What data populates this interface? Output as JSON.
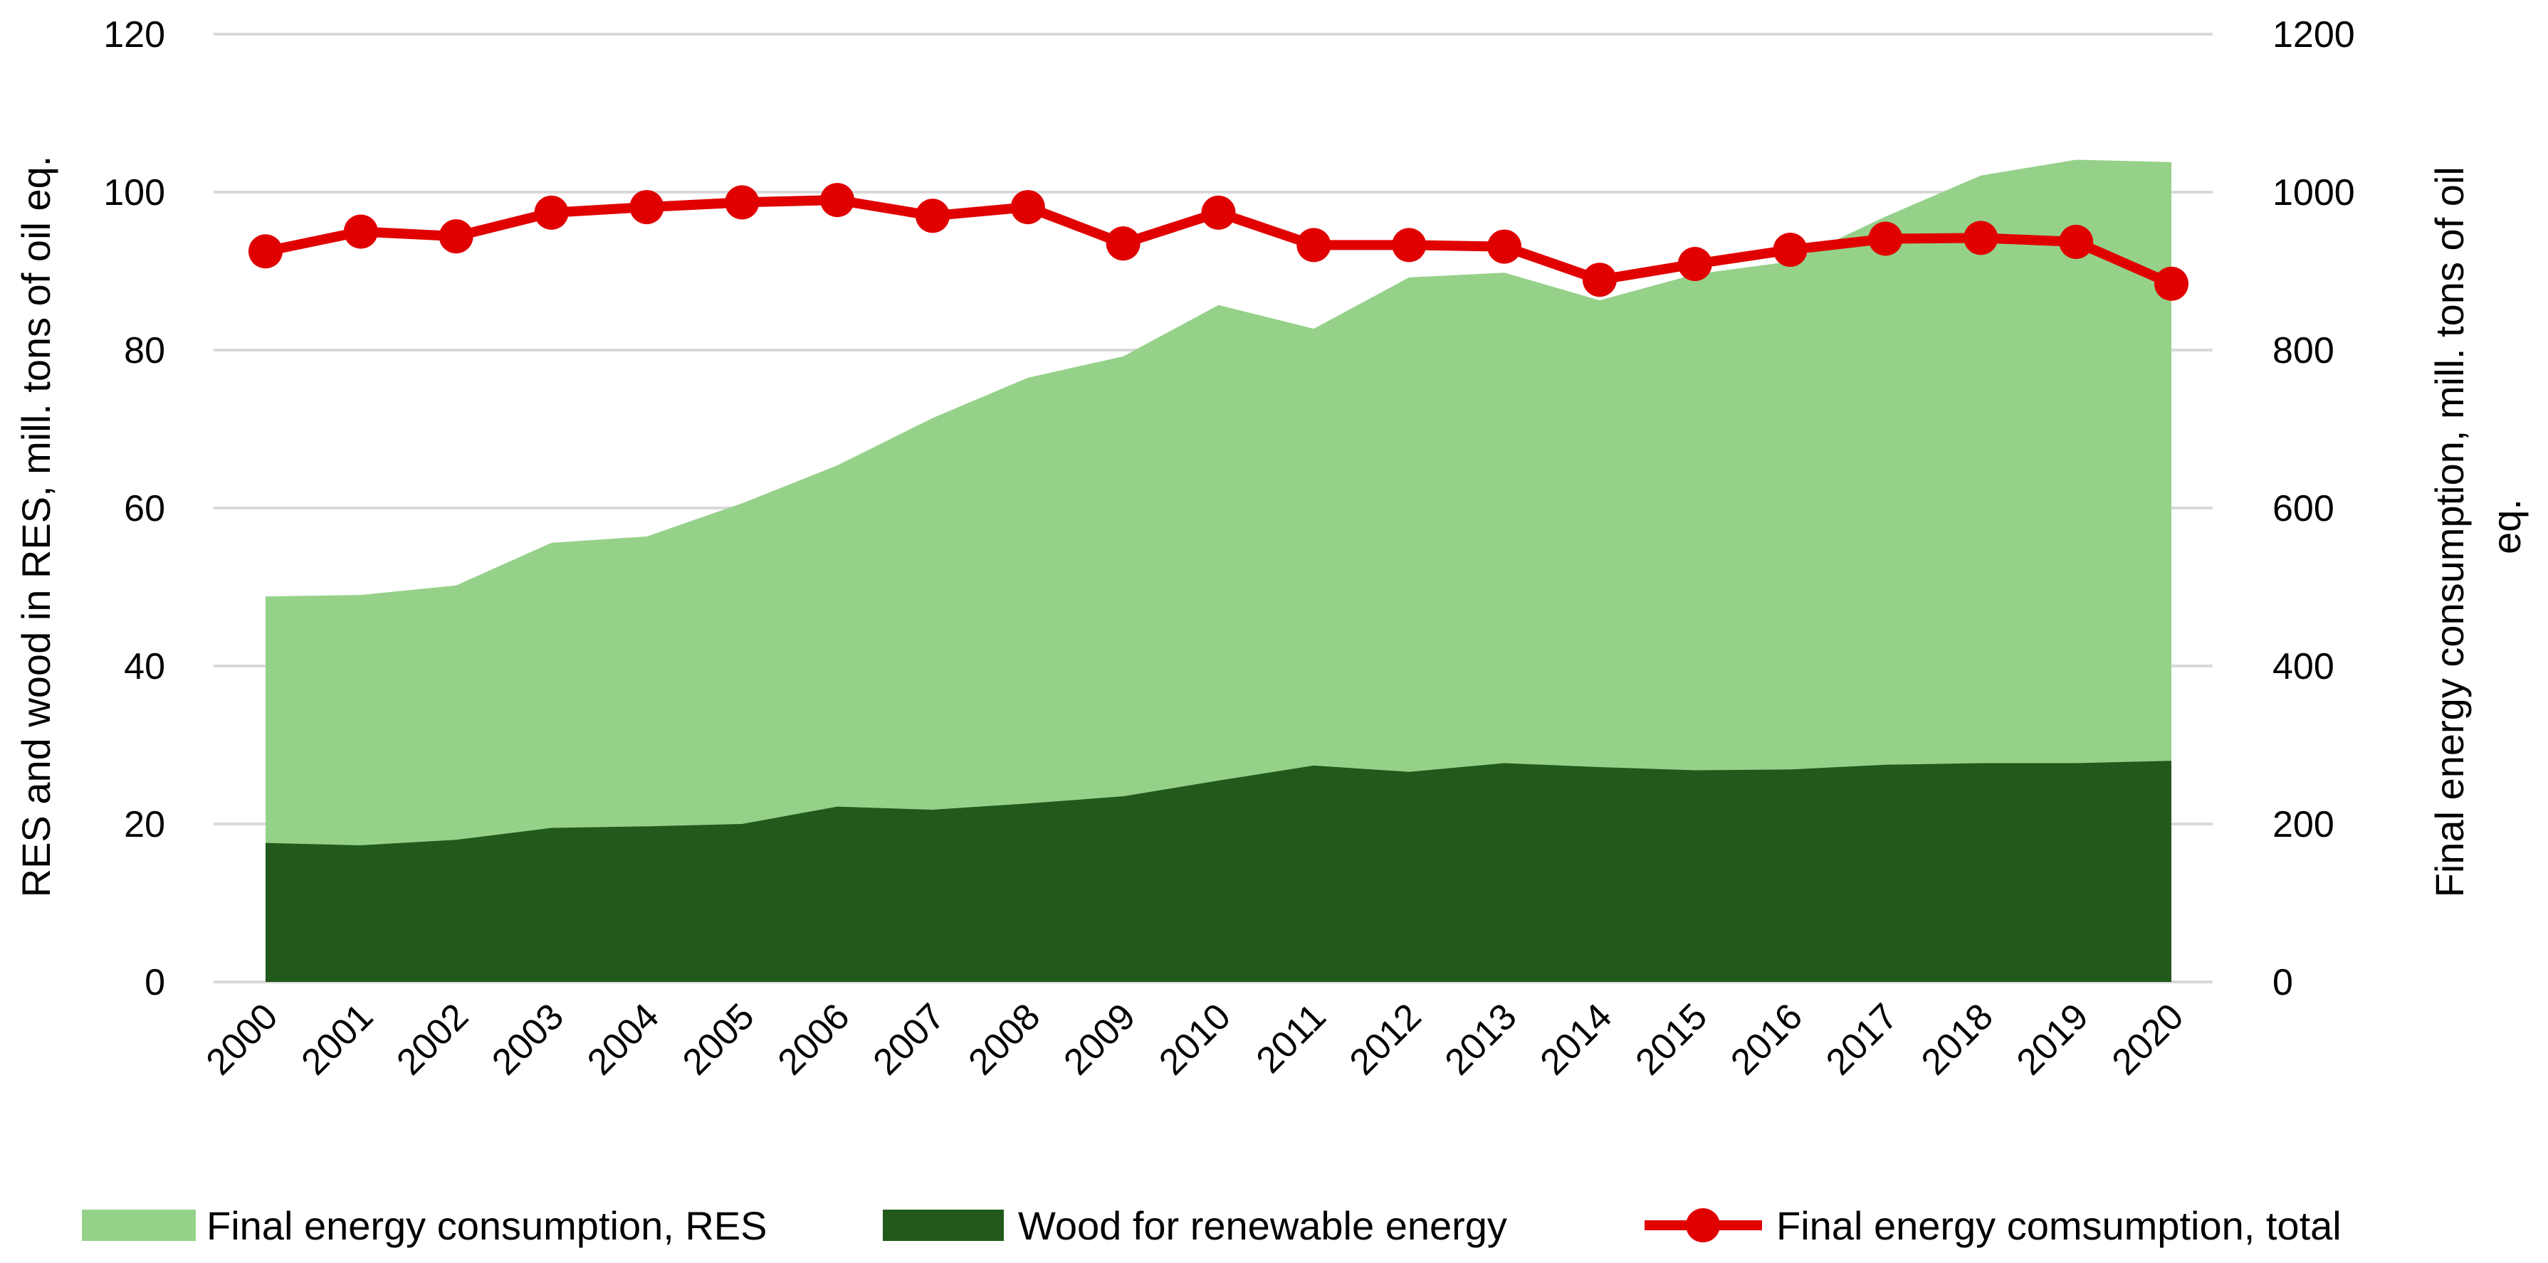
{
  "chart_data": {
    "type": "area",
    "title": "",
    "categories": [
      "2000",
      "2001",
      "2002",
      "2003",
      "2004",
      "2005",
      "2006",
      "2007",
      "2008",
      "2009",
      "2010",
      "2011",
      "2012",
      "2013",
      "2014",
      "2015",
      "2016",
      "2017",
      "2018",
      "2019",
      "2020"
    ],
    "y_left": {
      "label": "RES and wood in RES, mill. tons of oil eq.",
      "ylim": [
        0,
        120
      ],
      "ticks": [
        0,
        20,
        40,
        60,
        80,
        100,
        120
      ]
    },
    "y_right": {
      "label_lines": [
        "Final energy consumption, mill. tons of oil",
        "eq."
      ],
      "ylim": [
        0,
        1200
      ],
      "ticks": [
        0,
        200,
        400,
        600,
        800,
        1000,
        1200
      ]
    },
    "grid": true,
    "legend_position": "bottom",
    "series": [
      {
        "name": "Final energy consumption, RES",
        "kind": "area",
        "axis": "left",
        "color": "#96d18a",
        "values": [
          48.8,
          49.0,
          50.2,
          55.6,
          56.4,
          60.6,
          65.4,
          71.4,
          76.5,
          79.2,
          85.7,
          82.7,
          89.2,
          89.8,
          86.3,
          89.6,
          91.2,
          96.9,
          102.1,
          104.1,
          103.8
        ]
      },
      {
        "name": "Wood for renewable energy",
        "kind": "area",
        "axis": "left",
        "color": "#215a1a",
        "values": [
          17.6,
          17.3,
          18.0,
          19.5,
          19.7,
          20.0,
          22.2,
          21.8,
          22.6,
          23.5,
          25.5,
          27.4,
          26.6,
          27.7,
          27.2,
          26.8,
          26.9,
          27.5,
          27.7,
          27.7,
          28.0
        ]
      },
      {
        "name": "Final energy comsumption, total",
        "kind": "line",
        "axis": "right",
        "color": "#e00000",
        "values": [
          925,
          950,
          944,
          974,
          981,
          987,
          990,
          970,
          981,
          935,
          974,
          933,
          933,
          931,
          889,
          909,
          927,
          941,
          942,
          937,
          884
        ]
      }
    ]
  }
}
